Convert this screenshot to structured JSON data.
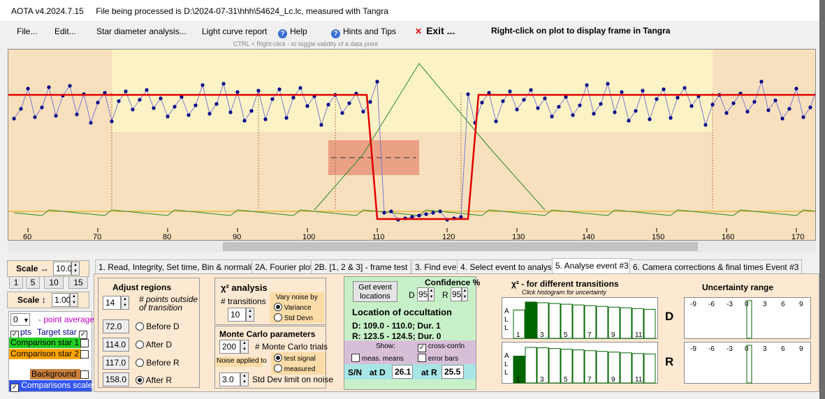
{
  "title": {
    "app": "AOTA v4.2024.7.15",
    "file_text": "File being processed is D:\\2024-07-31\\hhh\\54624_Lc.lc, measured with Tangra"
  },
  "menu": {
    "file": "File...",
    "edit": "Edit...",
    "star_diameter": "Star diameter analysis...",
    "light_curve": "Light curve report",
    "help": "Help",
    "hints": "Hints and Tips",
    "exit": "Exit ...",
    "right_click_hint": "Right-click on plot to display frame in Tangra",
    "ctrl_hint": "CTRL + Right-click  -  to toggle validity of a data point"
  },
  "plot": {
    "x_ticks": [
      "60",
      "70",
      "80",
      "90",
      "100",
      "110",
      "120",
      "130",
      "140",
      "150",
      "160",
      "170"
    ],
    "colors": {
      "background": "#f7e0bd",
      "highlight": "#fbf3c5",
      "model": "#e00000",
      "data": "#00008b",
      "comparison": "#2a8a2a"
    }
  },
  "left_panel": {
    "scale_h_label": "Scale ↔",
    "scale_h_value": "10.0",
    "zoom_buttons": [
      "1",
      "5",
      "10",
      "15"
    ],
    "scale_v_label": "Scale ↕",
    "scale_v_value": "1.00",
    "point_avg_value": "0",
    "point_avg_label": "point average",
    "pts_label": "pts",
    "target_star": "Target star",
    "comparison1": "Comparison star 1",
    "comparison2": "Comparison star 2",
    "background": "Background",
    "comparisons_scaled": "Comparisons scaled"
  },
  "tabs": [
    "1.  Read, Integrity, Set time, Bin & normalise",
    "2A. Fourier plot",
    "2B. [1, 2 & 3] - frame test",
    "3. Find events",
    "4. Select event to analyse",
    "5. Analyse event #3",
    "6. Camera corrections & final times Event #3"
  ],
  "adjust": {
    "title": "Adjust regions",
    "points_value": "14",
    "points_label": "# points outside of transition",
    "before_d": "72.0",
    "before_d_label": "Before D",
    "after_d": "114.0",
    "after_d_label": "After D",
    "before_r": "117.0",
    "before_r_label": "Before R",
    "after_r": "158.0",
    "after_r_label": "After R"
  },
  "chi": {
    "title": "χ² analysis",
    "transitions_label": "# transitions",
    "transitions_value": "10",
    "vary_label": "Vary noise by",
    "variance": "Variance",
    "std_devn": "Std Devn"
  },
  "monte": {
    "title": "Monte Carlo parameters",
    "trials_value": "200",
    "trials_label": "# Monte Carlo trials",
    "noise_label": "Noise applied to",
    "test_signal": "test signal",
    "measured": "measured",
    "limit_value": "3.0",
    "limit_label": "Std Dev limit on noise"
  },
  "event": {
    "get_btn_line1": "Get event",
    "get_btn_line2": "locations",
    "confidence_label": "Confidence %",
    "d_label": "D",
    "d_value": "95",
    "r_label": "R",
    "r_value": "95",
    "location_title": "Location of occultation",
    "d_line": "D: 109.0 - 110.0; Dur. 1",
    "r_line": "R: 123.5 - 124.5; Dur. 0",
    "show_label": "Show:",
    "cross_corrln": "cross-corrln",
    "meas_means": "meas. means",
    "error_bars": "error bars",
    "sn_label": "S/N",
    "at_d_label": "at D",
    "at_d_value": "26.1",
    "at_r_label": "at R",
    "at_r_value": "25.5"
  },
  "histogram": {
    "title": "χ² - for different transitions",
    "subtitle": "Click histogram for uncertainty",
    "side_letters": [
      "A",
      "L",
      "L"
    ],
    "ticks": [
      "1",
      "3",
      "5",
      "7",
      "9",
      "11"
    ],
    "d_label": "D",
    "r_label": "R",
    "d_values": [
      0.78,
      1.0,
      0.98,
      0.96,
      0.94,
      0.92,
      0.9,
      0.88,
      0.86,
      0.84,
      0.82,
      0.8
    ],
    "r_values": [
      0.74,
      0.98,
      0.97,
      0.95,
      0.93,
      0.91,
      0.89,
      0.87,
      0.85,
      0.83,
      0.81,
      0.8
    ],
    "d_selected": 1,
    "r_selected": 0
  },
  "uncertainty": {
    "title": "Uncertainty range",
    "ticks": [
      "-9",
      "-6",
      "-3",
      "0",
      "3",
      "6",
      "9"
    ]
  }
}
